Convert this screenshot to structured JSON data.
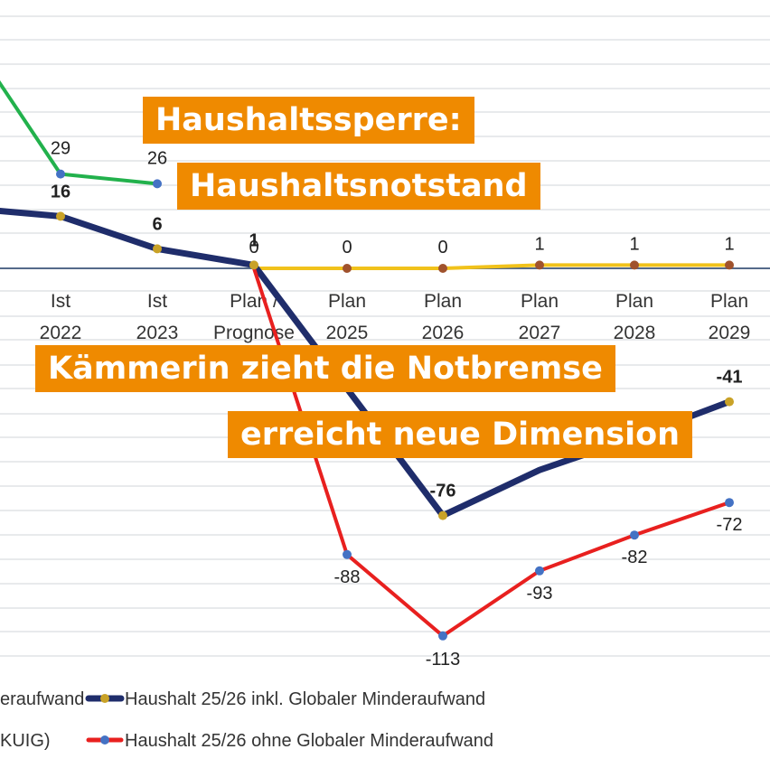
{
  "headlines": [
    "Haushaltssperre:",
    "Haushaltsnotstand",
    "Kämmerin zieht die Notbremse",
    "erreicht neue Dimension"
  ],
  "colors": {
    "green": "#22b14c",
    "navy": "#1f2d6b",
    "gold": "#f1c21b",
    "red": "#e8201f",
    "marker_blue": "#4472c4",
    "marker_gold": "#c9a227",
    "marker_brown": "#a0522d",
    "headline_bg": "#ef8a00"
  },
  "chart_data": {
    "type": "line",
    "categories": [
      [
        "Ist",
        "2022"
      ],
      [
        "Ist",
        "2023"
      ],
      [
        "Plan /",
        "Prognose"
      ],
      [
        "Plan",
        "2025"
      ],
      [
        "Plan",
        "2026"
      ],
      [
        "Plan",
        "2027"
      ],
      [
        "Plan",
        "2028"
      ],
      [
        "Plan",
        "2029"
      ]
    ],
    "series": [
      {
        "key": "green",
        "name": "",
        "values": [
          29,
          26,
          null,
          null,
          null,
          null,
          null,
          null
        ],
        "labels": [
          "29",
          "26",
          null,
          null,
          null,
          null,
          null,
          null
        ]
      },
      {
        "key": "navy",
        "name": "Haushalt 25/26 inkl. Globaler Minderaufwand",
        "values": [
          16,
          6,
          1,
          null,
          -76,
          null,
          null,
          -41
        ],
        "labels": [
          "16",
          "6",
          "1",
          null,
          "-76",
          null,
          null,
          "-41"
        ]
      },
      {
        "key": "gold",
        "name": "",
        "values": [
          null,
          null,
          0,
          0,
          0,
          1,
          1,
          1
        ],
        "labels": [
          null,
          null,
          "0",
          "0",
          "0",
          "1",
          "1",
          "1"
        ]
      },
      {
        "key": "red",
        "name": "Haushalt 25/26 ohne Globaler Minderaufwand",
        "values": [
          null,
          null,
          0,
          -88,
          -113,
          -93,
          -82,
          -72
        ],
        "labels": [
          null,
          null,
          null,
          "-88",
          "-113",
          "-93",
          "-82",
          "-72"
        ]
      }
    ],
    "legend_partial": [
      "eraufwand",
      "KUIG)"
    ],
    "grid": true,
    "legend_position": "bottom"
  }
}
